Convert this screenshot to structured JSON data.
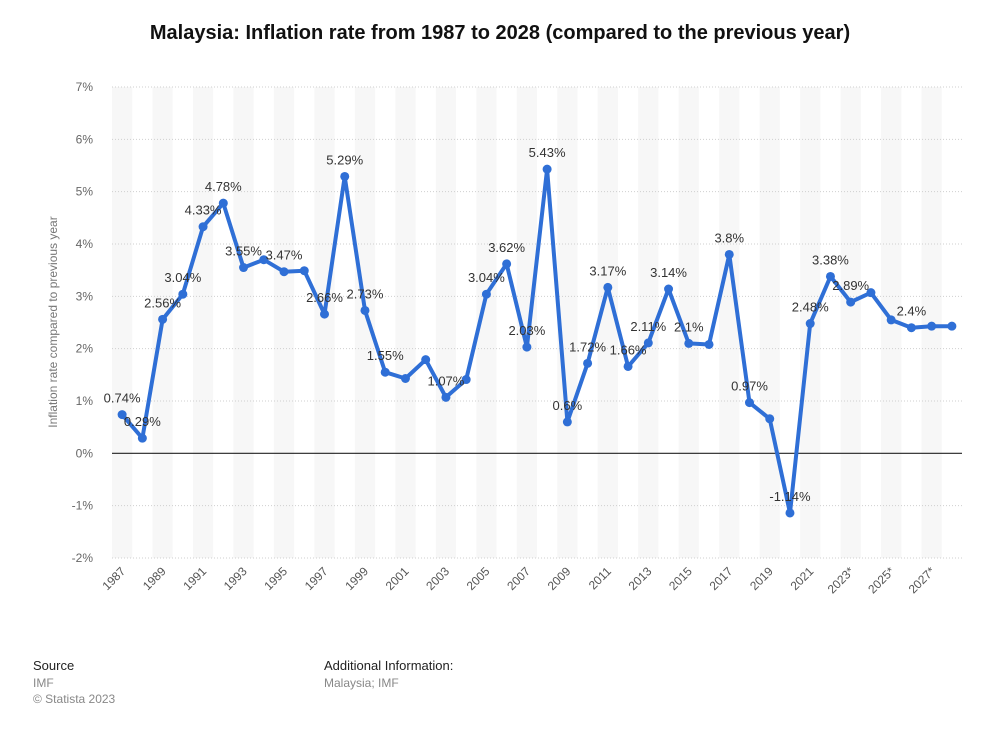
{
  "chart_data": {
    "type": "line",
    "title": "Malaysia: Inflation rate from 1987 to 2028 (compared to the previous year)",
    "ylabel": "Inflation rate compared to previous year",
    "xlabel": "",
    "ylim": [
      -2,
      7
    ],
    "yticks": [
      "-2%",
      "-1%",
      "0%",
      "1%",
      "2%",
      "3%",
      "4%",
      "5%",
      "6%",
      "7%"
    ],
    "xtick_labels": [
      "1987",
      "1989",
      "1991",
      "1993",
      "1995",
      "1997",
      "1999",
      "2001",
      "2003",
      "2005",
      "2007",
      "2009",
      "2011",
      "2013",
      "2015",
      "2017",
      "2019",
      "2021",
      "2023*",
      "2025*",
      "2027*"
    ],
    "series_color": "#2f6fd6",
    "grid": true,
    "x": [
      1987,
      1988,
      1989,
      1990,
      1991,
      1992,
      1993,
      1994,
      1995,
      1996,
      1997,
      1998,
      1999,
      2000,
      2001,
      2002,
      2003,
      2004,
      2005,
      2006,
      2007,
      2008,
      2009,
      2010,
      2011,
      2012,
      2013,
      2014,
      2015,
      2016,
      2017,
      2018,
      2019,
      2020,
      2021,
      2022,
      2023,
      2024,
      2025,
      2026,
      2027,
      2028
    ],
    "values": [
      0.74,
      0.29,
      2.56,
      3.04,
      4.33,
      4.78,
      3.55,
      3.7,
      3.47,
      3.49,
      2.66,
      5.29,
      2.73,
      1.55,
      1.43,
      1.79,
      1.07,
      1.41,
      3.04,
      3.62,
      2.03,
      5.43,
      0.6,
      1.72,
      3.17,
      1.66,
      2.11,
      3.14,
      2.1,
      2.08,
      3.8,
      0.97,
      0.66,
      -1.14,
      2.48,
      3.38,
      2.89,
      3.07,
      2.55,
      2.4,
      2.43,
      2.43
    ],
    "data_labels": [
      {
        "index": 0,
        "text": "0.74%"
      },
      {
        "index": 1,
        "text": "0.29%"
      },
      {
        "index": 2,
        "text": "2.56%"
      },
      {
        "index": 3,
        "text": "3.04%"
      },
      {
        "index": 4,
        "text": "4.33%"
      },
      {
        "index": 5,
        "text": "4.78%"
      },
      {
        "index": 6,
        "text": "3.55%"
      },
      {
        "index": 8,
        "text": "3.47%"
      },
      {
        "index": 10,
        "text": "2.66%"
      },
      {
        "index": 11,
        "text": "5.29%"
      },
      {
        "index": 12,
        "text": "2.73%"
      },
      {
        "index": 13,
        "text": "1.55%"
      },
      {
        "index": 16,
        "text": "1.07%"
      },
      {
        "index": 18,
        "text": "3.04%"
      },
      {
        "index": 19,
        "text": "3.62%"
      },
      {
        "index": 20,
        "text": "2.03%"
      },
      {
        "index": 21,
        "text": "5.43%"
      },
      {
        "index": 22,
        "text": "0.6%"
      },
      {
        "index": 23,
        "text": "1.72%"
      },
      {
        "index": 24,
        "text": "3.17%"
      },
      {
        "index": 25,
        "text": "1.66%"
      },
      {
        "index": 26,
        "text": "2.11%"
      },
      {
        "index": 27,
        "text": "3.14%"
      },
      {
        "index": 28,
        "text": "2.1%"
      },
      {
        "index": 30,
        "text": "3.8%"
      },
      {
        "index": 31,
        "text": "0.97%"
      },
      {
        "index": 33,
        "text": "-1.14%"
      },
      {
        "index": 34,
        "text": "2.48%"
      },
      {
        "index": 35,
        "text": "3.38%"
      },
      {
        "index": 36,
        "text": "2.89%"
      },
      {
        "index": 39,
        "text": "2.4%"
      }
    ]
  },
  "footer": {
    "source_heading": "Source",
    "source_name": "IMF",
    "copyright": "© Statista 2023",
    "info_heading": "Additional Information:",
    "info_text": "Malaysia; IMF"
  }
}
